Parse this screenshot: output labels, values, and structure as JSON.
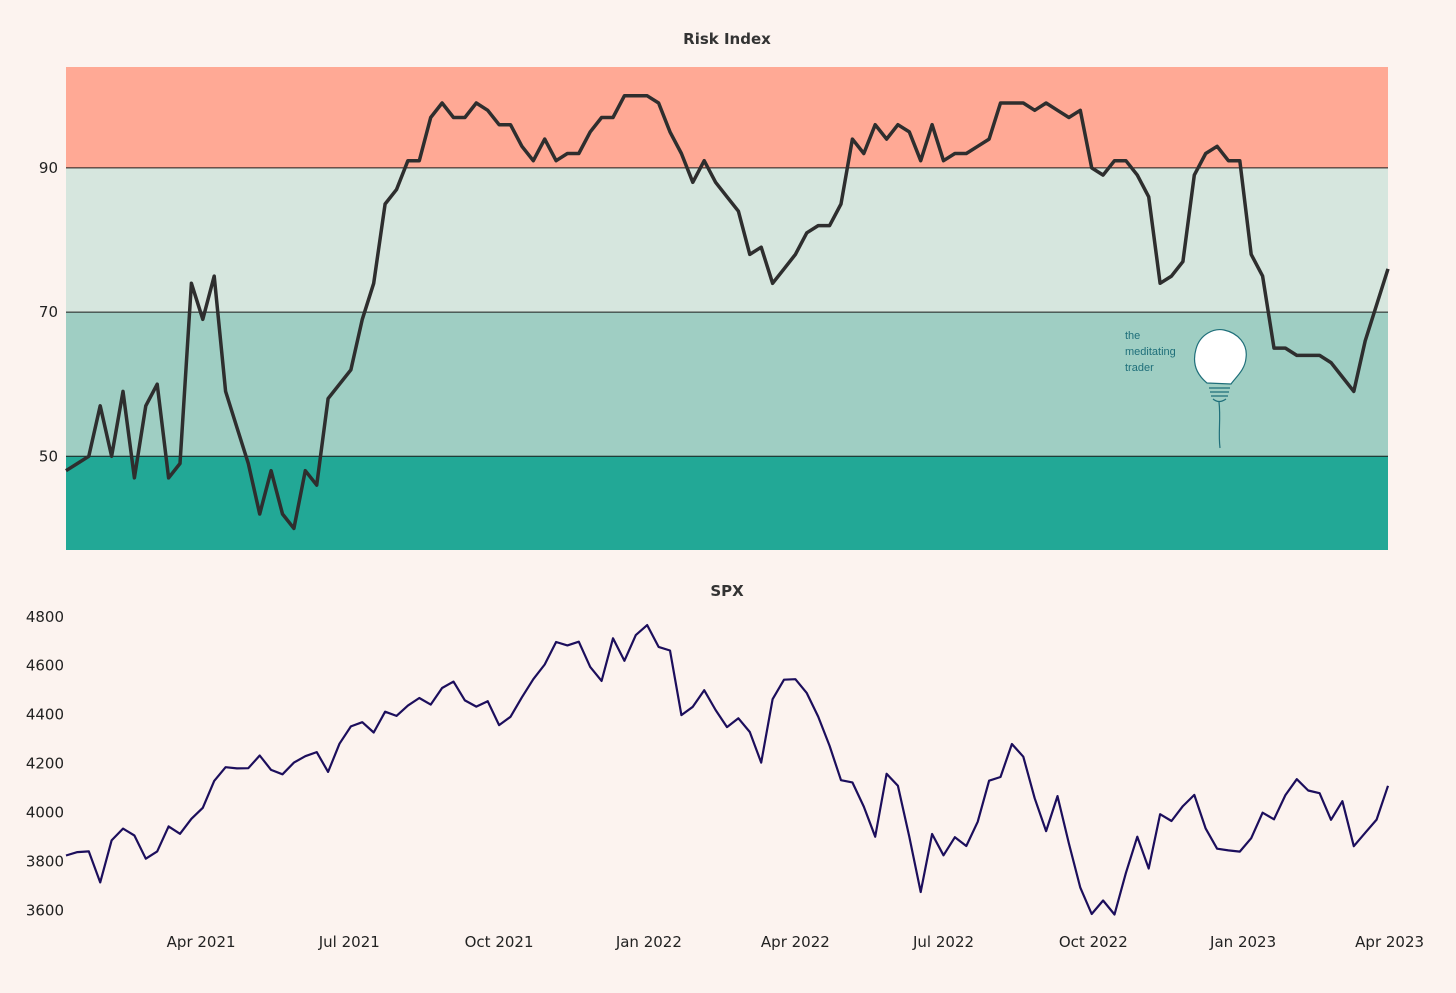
{
  "colors": {
    "background": "#fcf3ef",
    "band_high": "#ffa995",
    "band_upper_mid": "#d6e6de",
    "band_lower_mid": "#9fcec3",
    "band_low": "#22a896",
    "risk_line": "#2e2e2e",
    "spx_line": "#1c0e5c",
    "logo": "#1f6f7a"
  },
  "logo": {
    "icon": "lightbulb-icon",
    "lines": [
      "the",
      "meditating",
      "trader"
    ]
  },
  "chart_data": [
    {
      "type": "line",
      "title": "Risk Index",
      "ylim": [
        37,
        104
      ],
      "yticks": [
        50,
        70,
        90
      ],
      "bands": [
        {
          "from": 90,
          "to": 104,
          "color": "#ffa995"
        },
        {
          "from": 70,
          "to": 90,
          "color": "#d6e6de"
        },
        {
          "from": 50,
          "to": 70,
          "color": "#9fcec3"
        },
        {
          "from": 37,
          "to": 50,
          "color": "#22a896"
        }
      ],
      "series": [
        {
          "x": [
            "2021-01-08",
            "2021-01-15",
            "2021-01-22",
            "2021-01-29",
            "2021-02-05",
            "2021-02-12",
            "2021-02-19",
            "2021-02-26",
            "2021-03-05",
            "2021-03-12",
            "2021-03-19",
            "2021-03-26",
            "2021-04-02",
            "2021-04-09",
            "2021-04-16",
            "2021-04-23",
            "2021-04-30",
            "2021-05-07",
            "2021-05-14",
            "2021-05-21",
            "2021-05-28",
            "2021-06-04",
            "2021-06-11",
            "2021-06-18",
            "2021-06-25",
            "2021-07-02",
            "2021-07-09",
            "2021-07-16",
            "2021-07-23",
            "2021-07-30",
            "2021-08-06",
            "2021-08-13",
            "2021-08-20",
            "2021-08-27",
            "2021-09-03",
            "2021-09-10",
            "2021-09-17",
            "2021-09-24",
            "2021-10-01",
            "2021-10-08",
            "2021-10-15",
            "2021-10-22",
            "2021-10-29",
            "2021-11-05",
            "2021-11-12",
            "2021-11-19",
            "2021-11-26",
            "2021-12-03",
            "2021-12-10",
            "2021-12-17",
            "2021-12-24",
            "2021-12-31",
            "2022-01-07",
            "2022-01-14",
            "2022-01-21",
            "2022-01-28",
            "2022-02-04",
            "2022-02-11",
            "2022-02-18",
            "2022-02-25",
            "2022-03-04",
            "2022-03-11",
            "2022-03-18",
            "2022-03-25",
            "2022-04-01",
            "2022-04-08",
            "2022-04-15",
            "2022-04-22",
            "2022-04-29",
            "2022-05-06",
            "2022-05-13",
            "2022-05-20",
            "2022-05-27",
            "2022-06-03",
            "2022-06-10",
            "2022-06-17",
            "2022-06-24",
            "2022-07-01",
            "2022-07-08",
            "2022-07-15",
            "2022-07-22",
            "2022-07-29",
            "2022-08-05",
            "2022-08-12",
            "2022-08-19",
            "2022-08-26",
            "2022-09-02",
            "2022-09-09",
            "2022-09-16",
            "2022-09-23",
            "2022-09-30",
            "2022-10-07",
            "2022-10-14",
            "2022-10-21",
            "2022-10-28",
            "2022-11-04",
            "2022-11-11",
            "2022-11-18",
            "2022-11-25",
            "2022-12-02",
            "2022-12-09",
            "2022-12-16",
            "2022-12-23",
            "2022-12-30",
            "2023-01-06",
            "2023-01-13",
            "2023-01-20",
            "2023-01-27",
            "2023-02-03",
            "2023-02-10",
            "2023-02-17",
            "2023-02-24",
            "2023-03-03",
            "2023-03-10",
            "2023-03-17",
            "2023-03-24",
            "2023-03-31"
          ],
          "y": [
            48,
            49,
            50,
            57,
            50,
            59,
            47,
            57,
            60,
            47,
            49,
            74,
            69,
            75,
            59,
            54,
            49,
            42,
            48,
            42,
            40,
            48,
            46,
            58,
            60,
            62,
            69,
            74,
            85,
            87,
            91,
            91,
            97,
            99,
            97,
            97,
            99,
            98,
            96,
            96,
            93,
            91,
            94,
            91,
            92,
            92,
            95,
            97,
            97,
            100,
            100,
            100,
            99,
            95,
            92,
            88,
            91,
            88,
            86,
            84,
            78,
            79,
            74,
            76,
            78,
            81,
            82,
            82,
            85,
            94,
            92,
            96,
            94,
            96,
            95,
            91,
            96,
            91,
            92,
            92,
            93,
            94,
            99,
            99,
            99,
            98,
            99,
            98,
            97,
            98,
            90,
            89,
            91,
            91,
            89,
            86,
            74,
            75,
            77,
            89,
            92,
            93,
            91,
            91,
            78,
            75,
            65,
            65,
            64,
            64,
            64,
            63,
            61,
            59,
            66,
            71,
            76
          ]
        }
      ]
    },
    {
      "type": "line",
      "title": "SPX",
      "ylim": [
        3540,
        4840
      ],
      "yticks": [
        3600,
        3800,
        4000,
        4200,
        4400,
        4600,
        4800
      ],
      "x_range": [
        "2021-01-08",
        "2023-03-31"
      ],
      "xticks": [
        {
          "date": "2021-04-01",
          "label": "Apr 2021"
        },
        {
          "date": "2021-07-01",
          "label": "Jul 2021"
        },
        {
          "date": "2021-10-01",
          "label": "Oct 2021"
        },
        {
          "date": "2022-01-01",
          "label": "Jan 2022"
        },
        {
          "date": "2022-04-01",
          "label": "Apr 2022"
        },
        {
          "date": "2022-07-01",
          "label": "Jul 2022"
        },
        {
          "date": "2022-10-01",
          "label": "Oct 2022"
        },
        {
          "date": "2023-01-01",
          "label": "Jan 2023"
        },
        {
          "date": "2023-04-01",
          "label": "Apr 2023"
        }
      ],
      "series": [
        {
          "x": [
            "2021-01-08",
            "2021-01-15",
            "2021-01-22",
            "2021-01-29",
            "2021-02-05",
            "2021-02-12",
            "2021-02-19",
            "2021-02-26",
            "2021-03-05",
            "2021-03-12",
            "2021-03-19",
            "2021-03-26",
            "2021-04-02",
            "2021-04-09",
            "2021-04-16",
            "2021-04-23",
            "2021-04-30",
            "2021-05-07",
            "2021-05-14",
            "2021-05-21",
            "2021-05-28",
            "2021-06-04",
            "2021-06-11",
            "2021-06-18",
            "2021-06-25",
            "2021-07-02",
            "2021-07-09",
            "2021-07-16",
            "2021-07-23",
            "2021-07-30",
            "2021-08-06",
            "2021-08-13",
            "2021-08-20",
            "2021-08-27",
            "2021-09-03",
            "2021-09-10",
            "2021-09-17",
            "2021-09-24",
            "2021-10-01",
            "2021-10-08",
            "2021-10-15",
            "2021-10-22",
            "2021-10-29",
            "2021-11-05",
            "2021-11-12",
            "2021-11-19",
            "2021-11-26",
            "2021-12-03",
            "2021-12-10",
            "2021-12-17",
            "2021-12-24",
            "2021-12-31",
            "2022-01-07",
            "2022-01-14",
            "2022-01-21",
            "2022-01-28",
            "2022-02-04",
            "2022-02-11",
            "2022-02-18",
            "2022-02-25",
            "2022-03-04",
            "2022-03-11",
            "2022-03-18",
            "2022-03-25",
            "2022-04-01",
            "2022-04-08",
            "2022-04-15",
            "2022-04-22",
            "2022-04-29",
            "2022-05-06",
            "2022-05-13",
            "2022-05-20",
            "2022-05-27",
            "2022-06-03",
            "2022-06-10",
            "2022-06-17",
            "2022-06-24",
            "2022-07-01",
            "2022-07-08",
            "2022-07-15",
            "2022-07-22",
            "2022-07-29",
            "2022-08-05",
            "2022-08-12",
            "2022-08-19",
            "2022-08-26",
            "2022-09-02",
            "2022-09-09",
            "2022-09-16",
            "2022-09-23",
            "2022-09-30",
            "2022-10-07",
            "2022-10-14",
            "2022-10-21",
            "2022-10-28",
            "2022-11-04",
            "2022-11-11",
            "2022-11-18",
            "2022-11-25",
            "2022-12-02",
            "2022-12-09",
            "2022-12-16",
            "2022-12-23",
            "2022-12-30",
            "2023-01-06",
            "2023-01-13",
            "2023-01-20",
            "2023-01-27",
            "2023-02-03",
            "2023-02-10",
            "2023-02-17",
            "2023-02-24",
            "2023-03-03",
            "2023-03-10",
            "2023-03-17",
            "2023-03-24",
            "2023-03-31"
          ],
          "y": [
            3824,
            3838,
            3841,
            3714,
            3886,
            3934,
            3906,
            3811,
            3841,
            3943,
            3913,
            3974,
            4019,
            4129,
            4185,
            4180,
            4181,
            4233,
            4174,
            4156,
            4204,
            4230,
            4247,
            4166,
            4281,
            4352,
            4369,
            4327,
            4412,
            4395,
            4437,
            4468,
            4441,
            4509,
            4535,
            4458,
            4433,
            4455,
            4357,
            4391,
            4471,
            4545,
            4605,
            4697,
            4683,
            4698,
            4595,
            4538,
            4712,
            4620,
            4725,
            4766,
            4677,
            4662,
            4398,
            4432,
            4500,
            4419,
            4349,
            4385,
            4329,
            4204,
            4463,
            4543,
            4545,
            4488,
            4392,
            4272,
            4132,
            4123,
            4024,
            3901,
            4158,
            4109,
            3901,
            3675,
            3912,
            3825,
            3899,
            3863,
            3962,
            4130,
            4145,
            4280,
            4228,
            4058,
            3924,
            4067,
            3873,
            3693,
            3585,
            3640,
            3583,
            3753,
            3901,
            3771,
            3993,
            3965,
            4026,
            4072,
            3934,
            3852,
            3845,
            3840,
            3895,
            3999,
            3972,
            4071,
            4136,
            4090,
            4079,
            3970,
            4046,
            3862,
            3917,
            3971,
            4109
          ]
        }
      ]
    }
  ]
}
